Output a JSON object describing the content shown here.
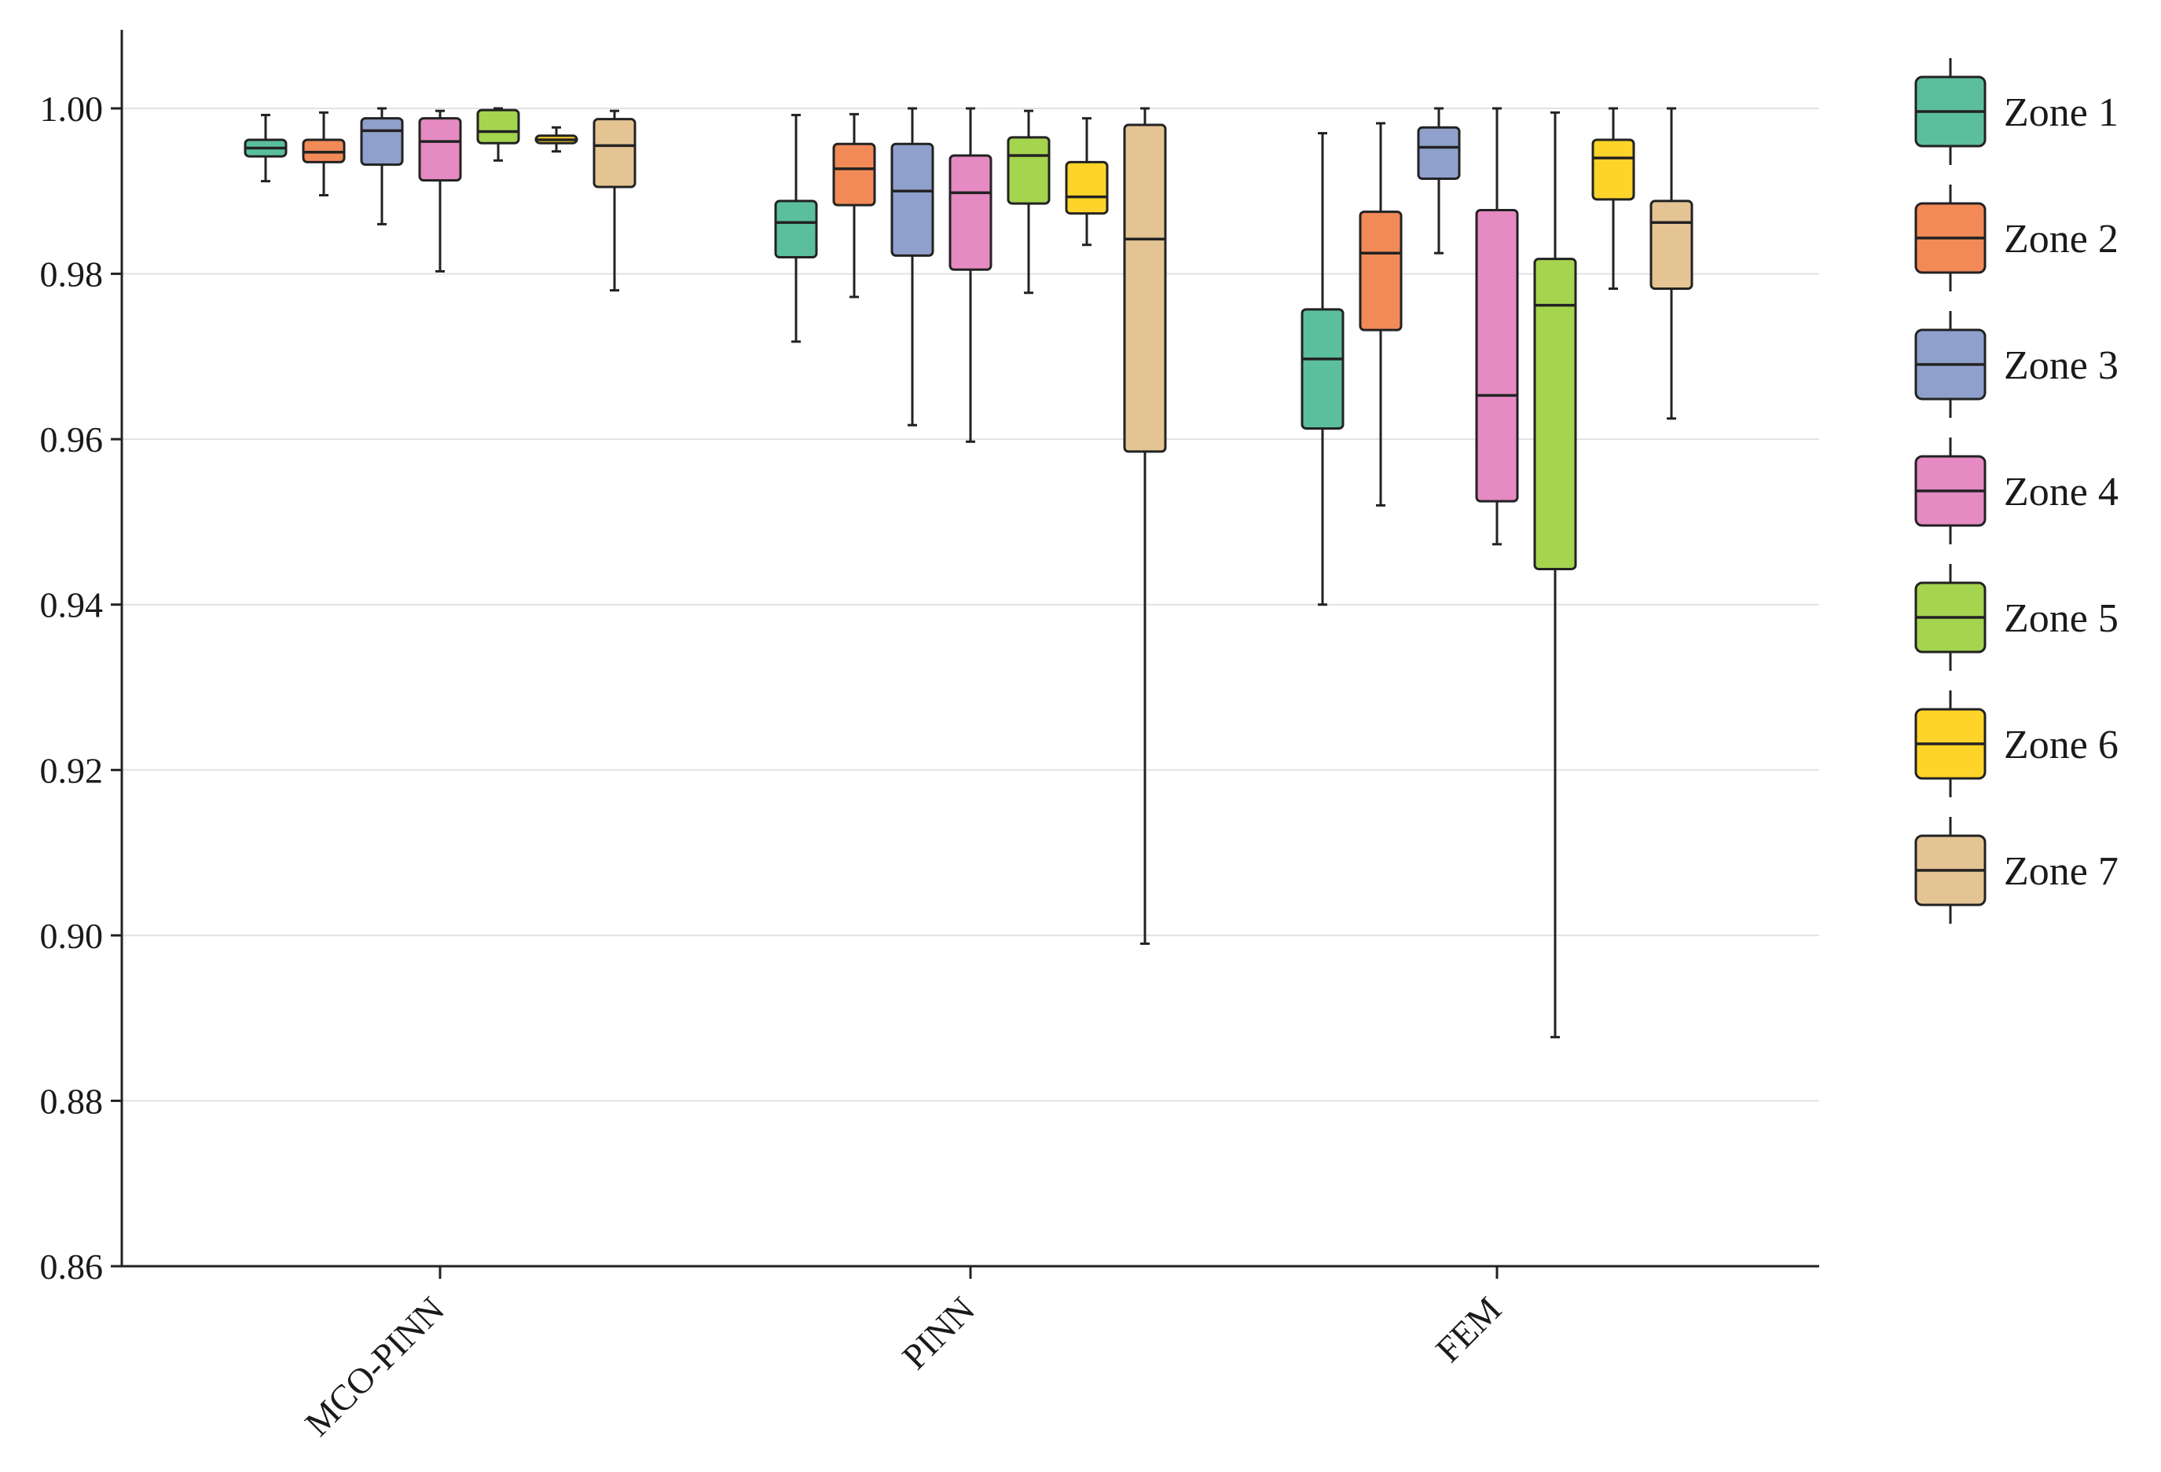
{
  "chart_data": {
    "type": "box",
    "title": "",
    "xlabel": "",
    "ylabel": "",
    "ylim": [
      0.86,
      1.01
    ],
    "yticks": [
      0.86,
      0.88,
      0.9,
      0.92,
      0.94,
      0.96,
      0.98,
      1.0
    ],
    "ytick_labels": [
      "0.86",
      "0.88",
      "0.90",
      "0.92",
      "0.94",
      "0.96",
      "0.98",
      "1.00"
    ],
    "grid": true,
    "legend_position": "right",
    "categories": [
      "MCO-PINN",
      "PINN",
      "FEM"
    ],
    "series": [
      {
        "name": "Zone 1",
        "color": "#5bbf9e",
        "boxes": [
          {
            "whislo": 0.9912,
            "q1": 0.9942,
            "med": 0.9952,
            "q3": 0.9962,
            "whishi": 0.9992
          },
          {
            "whislo": 0.9718,
            "q1": 0.982,
            "med": 0.9862,
            "q3": 0.9888,
            "whishi": 0.9992
          },
          {
            "whislo": 0.94,
            "q1": 0.9613,
            "med": 0.9697,
            "q3": 0.9757,
            "whishi": 0.997
          }
        ]
      },
      {
        "name": "Zone 2",
        "color": "#f28a58",
        "boxes": [
          {
            "whislo": 0.9895,
            "q1": 0.9935,
            "med": 0.9947,
            "q3": 0.9962,
            "whishi": 0.9995
          },
          {
            "whislo": 0.9772,
            "q1": 0.9883,
            "med": 0.9927,
            "q3": 0.9957,
            "whishi": 0.9993
          },
          {
            "whislo": 0.952,
            "q1": 0.9732,
            "med": 0.9825,
            "q3": 0.9875,
            "whishi": 0.9982
          }
        ]
      },
      {
        "name": "Zone 3",
        "color": "#8fa0cc",
        "boxes": [
          {
            "whislo": 0.986,
            "q1": 0.9932,
            "med": 0.9973,
            "q3": 0.9988,
            "whishi": 1.0
          },
          {
            "whislo": 0.9617,
            "q1": 0.9822,
            "med": 0.99,
            "q3": 0.9957,
            "whishi": 1.0
          },
          {
            "whislo": 0.9825,
            "q1": 0.9915,
            "med": 0.9953,
            "q3": 0.9977,
            "whishi": 1.0
          }
        ]
      },
      {
        "name": "Zone 4",
        "color": "#e58ac2",
        "boxes": [
          {
            "whislo": 0.9803,
            "q1": 0.9913,
            "med": 0.996,
            "q3": 0.9988,
            "whishi": 0.9997
          },
          {
            "whislo": 0.9597,
            "q1": 0.9805,
            "med": 0.9898,
            "q3": 0.9943,
            "whishi": 1.0
          },
          {
            "whislo": 0.9473,
            "q1": 0.9525,
            "med": 0.9653,
            "q3": 0.9877,
            "whishi": 1.0
          }
        ]
      },
      {
        "name": "Zone 5",
        "color": "#a5d44f",
        "boxes": [
          {
            "whislo": 0.9937,
            "q1": 0.9958,
            "med": 0.9972,
            "q3": 0.9998,
            "whishi": 1.0
          },
          {
            "whislo": 0.9777,
            "q1": 0.9885,
            "med": 0.9943,
            "q3": 0.9965,
            "whishi": 0.9997
          },
          {
            "whislo": 0.8877,
            "q1": 0.9443,
            "med": 0.9762,
            "q3": 0.9818,
            "whishi": 0.9995
          }
        ]
      },
      {
        "name": "Zone 6",
        "color": "#ffd42a",
        "boxes": [
          {
            "whislo": 0.9948,
            "q1": 0.9958,
            "med": 0.9962,
            "q3": 0.9967,
            "whishi": 0.9977
          },
          {
            "whislo": 0.9835,
            "q1": 0.9873,
            "med": 0.9893,
            "q3": 0.9935,
            "whishi": 0.9988
          },
          {
            "whislo": 0.9782,
            "q1": 0.989,
            "med": 0.994,
            "q3": 0.9962,
            "whishi": 1.0
          }
        ]
      },
      {
        "name": "Zone 7",
        "color": "#e5c494",
        "boxes": [
          {
            "whislo": 0.978,
            "q1": 0.9905,
            "med": 0.9955,
            "q3": 0.9987,
            "whishi": 0.9997
          },
          {
            "whislo": 0.899,
            "q1": 0.9585,
            "med": 0.9842,
            "q3": 0.998,
            "whishi": 1.0
          },
          {
            "whislo": 0.9625,
            "q1": 0.9782,
            "med": 0.9862,
            "q3": 0.9888,
            "whishi": 1.0
          }
        ]
      }
    ]
  }
}
